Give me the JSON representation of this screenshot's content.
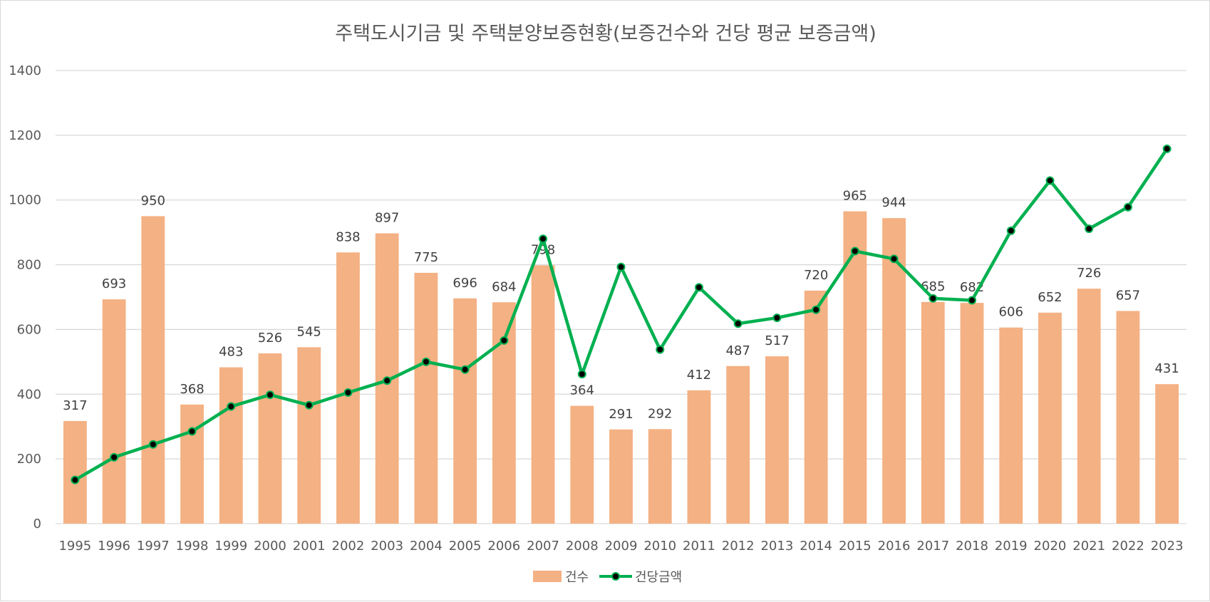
{
  "chart_data": {
    "type": "bar",
    "title": "주택도시기금 및 주택분양보증현황(보증건수와 건당 평균 보증금액)",
    "xlabel": "",
    "ylabel": "",
    "ylim": [
      0,
      1400
    ],
    "yticks": [
      "0",
      "200",
      "400",
      "600",
      "800",
      "1000",
      "1200",
      "1400"
    ],
    "grid": true,
    "legend_position": "bottom",
    "categories": [
      "1995",
      "1996",
      "1997",
      "1998",
      "1999",
      "2000",
      "2001",
      "2002",
      "2003",
      "2004",
      "2005",
      "2006",
      "2007",
      "2008",
      "2009",
      "2010",
      "2011",
      "2012",
      "2013",
      "2014",
      "2015",
      "2016",
      "2017",
      "2018",
      "2019",
      "2020",
      "2021",
      "2022",
      "2023"
    ],
    "series": [
      {
        "name": "건수",
        "type": "bar",
        "color": "#f4b183",
        "values": [
          317,
          693,
          950,
          368,
          483,
          526,
          545,
          838,
          897,
          775,
          696,
          684,
          798,
          364,
          291,
          292,
          412,
          487,
          517,
          720,
          965,
          944,
          685,
          682,
          606,
          652,
          726,
          657,
          431
        ],
        "data_labels": true
      },
      {
        "name": "건당금액",
        "type": "line",
        "color": "#00b050",
        "marker_color": "#000000",
        "values": [
          135,
          205,
          245,
          285,
          362,
          398,
          366,
          405,
          442,
          500,
          476,
          566,
          880,
          462,
          793,
          538,
          730,
          618,
          636,
          661,
          842,
          818,
          696,
          690,
          905,
          1060,
          911,
          978,
          1158
        ],
        "data_labels": false
      }
    ]
  }
}
